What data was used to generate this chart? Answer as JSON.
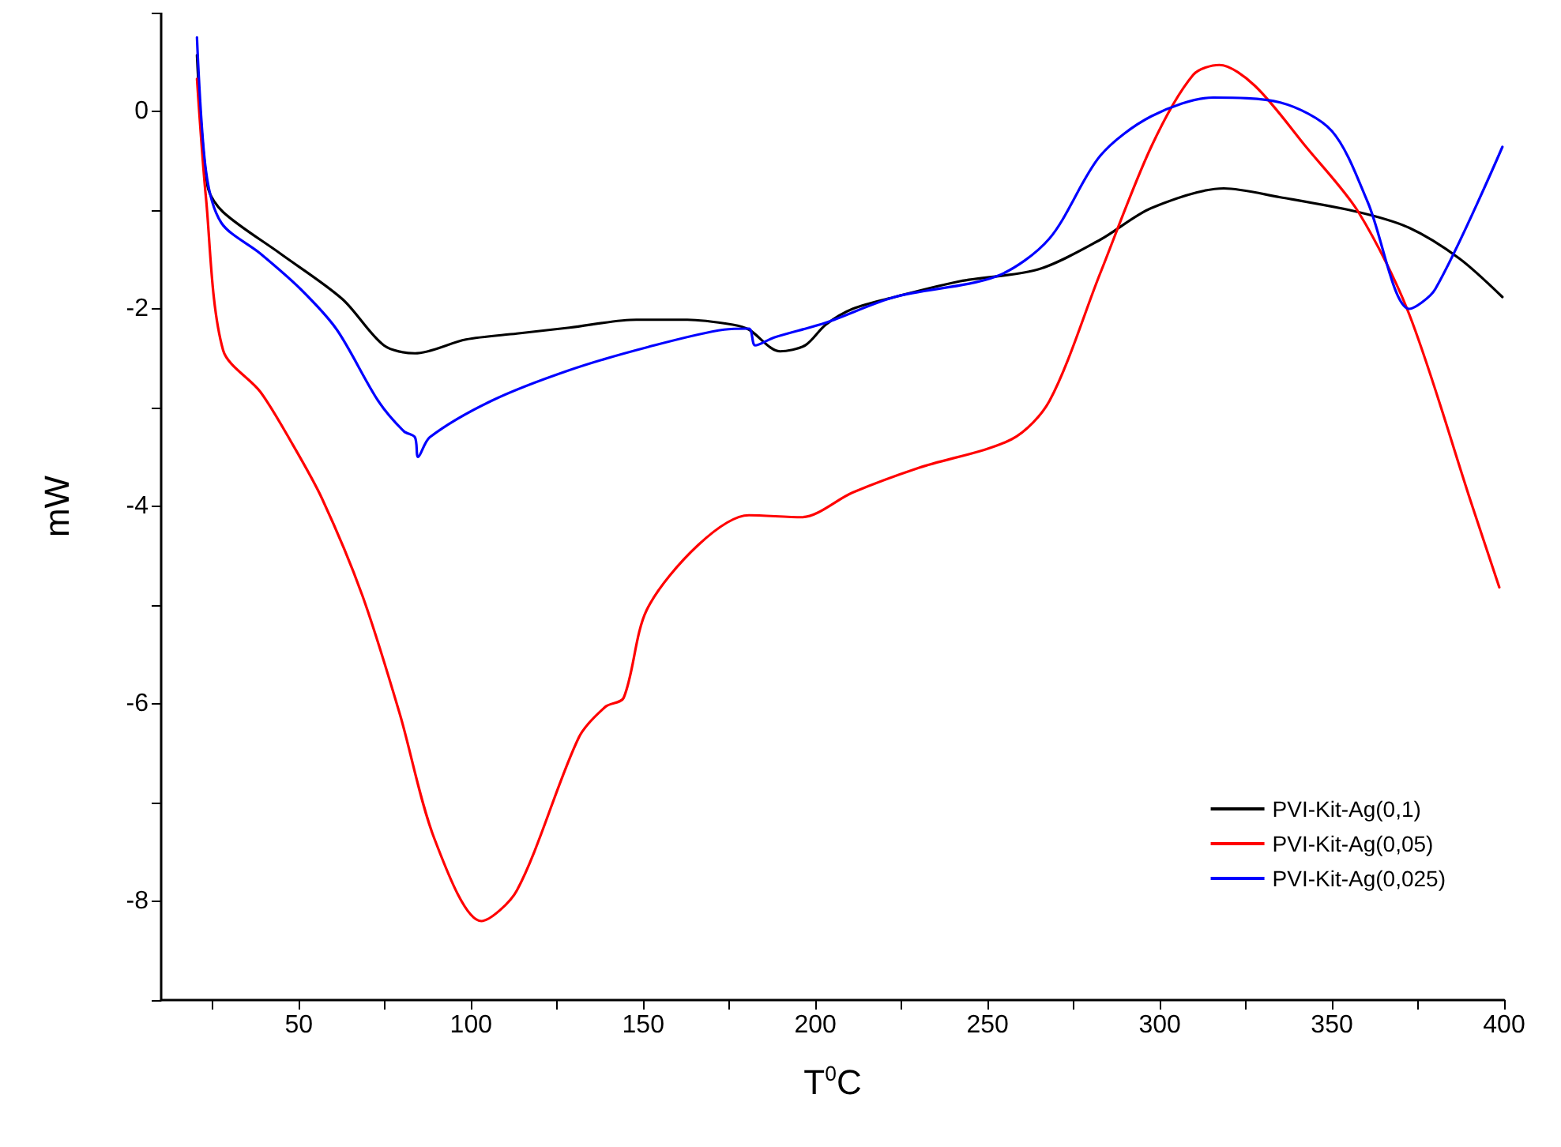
{
  "chart_data": {
    "type": "line",
    "xlabel": "T$^{0}$C",
    "ylabel": "mW",
    "xlim": [
      10,
      400
    ],
    "ylim": [
      -9,
      1
    ],
    "xticks": [
      {
        "value": 25,
        "label": null
      },
      50,
      {
        "value": 75,
        "label": null
      },
      100,
      {
        "value": 125,
        "label": null
      },
      150,
      {
        "value": 175,
        "label": null
      },
      200,
      {
        "value": 225,
        "label": null
      },
      250,
      {
        "value": 275,
        "label": null
      },
      300,
      {
        "value": 325,
        "label": null
      },
      350,
      {
        "value": 375,
        "label": null
      },
      400
    ],
    "yticks": [
      {
        "value": -9,
        "label": null
      },
      -8,
      {
        "value": -7,
        "label": null
      },
      -6,
      {
        "value": -5,
        "label": null
      },
      -4,
      {
        "value": -3,
        "label": null
      },
      -2,
      {
        "value": -1,
        "label": null
      },
      0,
      {
        "value": 1,
        "label": null
      }
    ],
    "grid": false,
    "legend": "bottom right",
    "marker": "none",
    "line_style": "solid",
    "series": [
      {
        "name": "PVI-Kit-Ag(0,1)",
        "color": "#000000",
        "x": [
          20.4,
          23.5,
          28,
          44.6,
          62.6,
          74.7,
          83.7,
          98.5,
          113.3,
          128.6,
          148,
          162.8,
          176,
          180.7,
          189.7,
          197,
          203,
          210.8,
          223,
          242,
          264.7,
          282.7,
          297.5,
          318.6,
          335,
          357.7,
          372.5,
          387,
          399.5
        ],
        "values": [
          0.57,
          -0.76,
          -1.02,
          -1.44,
          -1.9,
          -2.37,
          -2.45,
          -2.31,
          -2.25,
          -2.19,
          -2.11,
          -2.11,
          -2.16,
          -2.21,
          -2.43,
          -2.37,
          -2.16,
          -2.0,
          -1.88,
          -1.72,
          -1.6,
          -1.3,
          -0.98,
          -0.78,
          -0.87,
          -1.02,
          -1.18,
          -1.49,
          -1.88
        ]
      },
      {
        "name": "PVI-Kit-Ag(0,05)",
        "color": "#ff0000",
        "x": [
          20.4,
          23,
          28,
          38.8,
          47.8,
          56.7,
          68.4,
          79.2,
          89.5,
          103,
          113.3,
          131.3,
          139,
          144.3,
          151,
          166,
          180.7,
          196,
          210.8,
          230,
          257,
          268,
          282.7,
          297.5,
          309.7,
          317.3,
          327.6,
          342.5,
          357.7,
          372.5,
          390.5,
          398.6
        ],
        "values": [
          0.33,
          -0.87,
          -2.42,
          -2.84,
          -3.35,
          -3.92,
          -4.9,
          -6.09,
          -7.38,
          -8.2,
          -7.89,
          -6.34,
          -6.03,
          -5.94,
          -5.05,
          -4.39,
          -4.09,
          -4.11,
          -3.86,
          -3.61,
          -3.32,
          -2.93,
          -1.64,
          -0.36,
          0.37,
          0.47,
          0.26,
          -0.36,
          -1.02,
          -2.06,
          -3.97,
          -4.82
        ]
      },
      {
        "name": "PVI-Kit-Ag(0,025)",
        "color": "#0000ff",
        "x": [
          20.4,
          23,
          27.5,
          38.8,
          50.5,
          61,
          73,
          80.5,
          83.7,
          84.6,
          88,
          106,
          128.6,
          151,
          173.5,
          180.7,
          182.5,
          188,
          203,
          223,
          252.6,
          267.9,
          282.7,
          297.5,
          315.5,
          335,
          350,
          360.4,
          372.5,
          380,
          399.5
        ],
        "values": [
          0.75,
          -0.6,
          -1.13,
          -1.44,
          -1.8,
          -2.21,
          -2.93,
          -3.24,
          -3.3,
          -3.5,
          -3.3,
          -2.93,
          -2.62,
          -2.39,
          -2.21,
          -2.2,
          -2.37,
          -2.29,
          -2.14,
          -1.88,
          -1.67,
          -1.29,
          -0.45,
          -0.05,
          0.14,
          0.09,
          -0.2,
          -0.92,
          -2.0,
          -1.8,
          -0.36
        ]
      }
    ]
  }
}
